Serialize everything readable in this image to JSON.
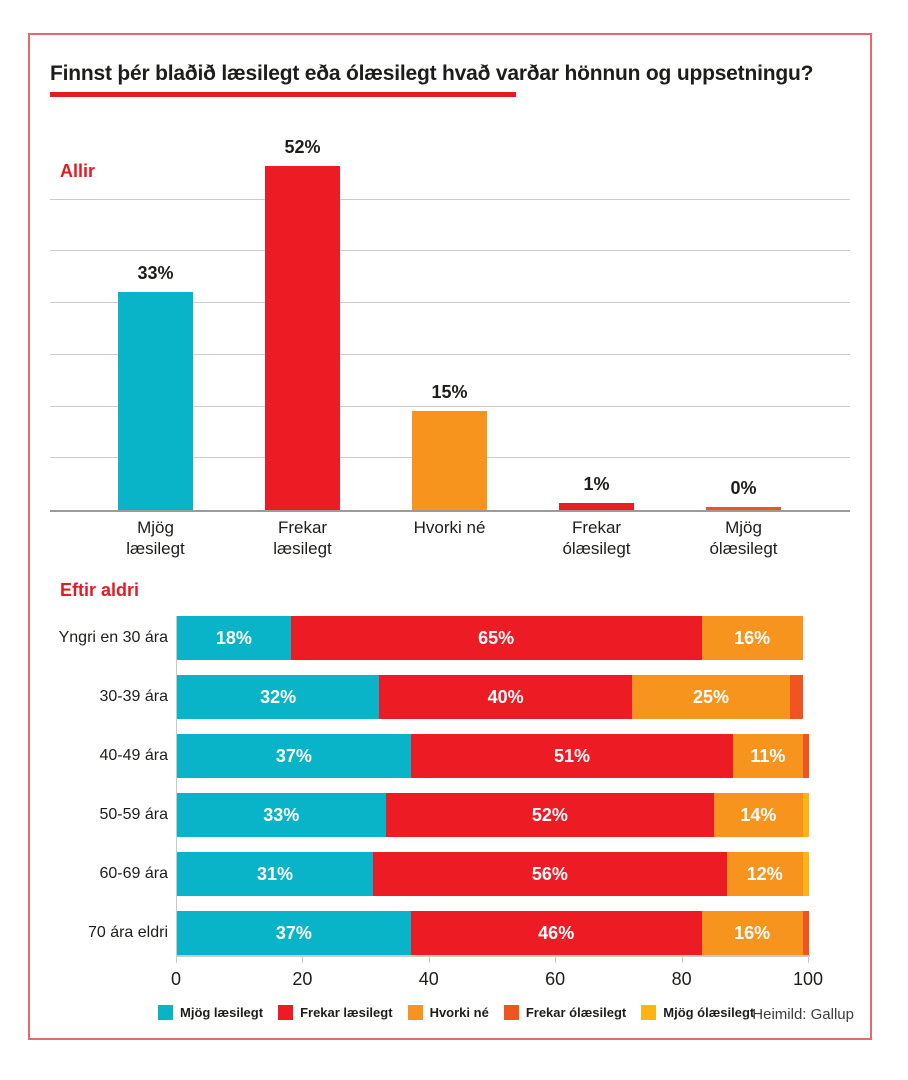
{
  "page": {
    "title": "Finnst þér blaðið læsilegt eða ólæsilegt hvað varðar hönnun og uppsetningu?",
    "source": "Heimild: Gallup"
  },
  "palette": {
    "mjog_laesilegt": "#09b4c8",
    "frekar_laesilegt": "#ec1b24",
    "hvorki_ne": "#f7941d",
    "frekar_olaesilegt": "#f0541f",
    "mjog_olaesilegt": "#fdb414",
    "accent_red": "#e31b23"
  },
  "chart_data": [
    {
      "type": "bar",
      "title": "Allir",
      "categories": [
        "Mjög læsilegt",
        "Frekar læsilegt",
        "Hvorki né",
        "Frekar ólæsilegt",
        "Mjög ólæsilegt"
      ],
      "category_lines": [
        [
          "Mjög",
          "læsilegt"
        ],
        [
          "Frekar",
          "læsilegt"
        ],
        [
          "Hvorki né"
        ],
        [
          "Frekar",
          "ólæsilegt"
        ],
        [
          "Mjög",
          "ólæsilegt"
        ]
      ],
      "values": [
        33,
        52,
        15,
        1,
        0
      ],
      "labels": [
        "33%",
        "52%",
        "15%",
        "1%",
        "0%"
      ],
      "bar_color_keys": [
        "mjog_laesilegt",
        "frekar_laesilegt",
        "hvorki_ne",
        "frekar_laesilegt",
        "frekar_olaesilegt"
      ],
      "ylim": [
        0,
        55
      ],
      "grid": true
    },
    {
      "type": "stacked-bar",
      "title": "Eftir aldri",
      "xlim": [
        0,
        100
      ],
      "x_ticks": [
        0,
        20,
        40,
        60,
        80,
        100
      ],
      "label_min_value": 10,
      "rows": [
        {
          "label": "Yngri en 30 ára",
          "segments": [
            {
              "key": "mjog_laesilegt",
              "value": 18
            },
            {
              "key": "frekar_laesilegt",
              "value": 65
            },
            {
              "key": "hvorki_ne",
              "value": 16
            }
          ]
        },
        {
          "label": "30-39 ára",
          "segments": [
            {
              "key": "mjog_laesilegt",
              "value": 32
            },
            {
              "key": "frekar_laesilegt",
              "value": 40
            },
            {
              "key": "hvorki_ne",
              "value": 25
            },
            {
              "key": "frekar_olaesilegt",
              "value": 2
            }
          ]
        },
        {
          "label": "40-49 ára",
          "segments": [
            {
              "key": "mjog_laesilegt",
              "value": 37
            },
            {
              "key": "frekar_laesilegt",
              "value": 51
            },
            {
              "key": "hvorki_ne",
              "value": 11
            },
            {
              "key": "frekar_olaesilegt",
              "value": 1
            }
          ]
        },
        {
          "label": "50-59 ára",
          "segments": [
            {
              "key": "mjog_laesilegt",
              "value": 33
            },
            {
              "key": "frekar_laesilegt",
              "value": 52
            },
            {
              "key": "hvorki_ne",
              "value": 14
            },
            {
              "key": "mjog_olaesilegt",
              "value": 1
            }
          ]
        },
        {
          "label": "60-69 ára",
          "segments": [
            {
              "key": "mjog_laesilegt",
              "value": 31
            },
            {
              "key": "frekar_laesilegt",
              "value": 56
            },
            {
              "key": "hvorki_ne",
              "value": 12
            },
            {
              "key": "mjog_olaesilegt",
              "value": 1
            }
          ]
        },
        {
          "label": "70 ára eldri",
          "segments": [
            {
              "key": "mjog_laesilegt",
              "value": 37
            },
            {
              "key": "frekar_laesilegt",
              "value": 46
            },
            {
              "key": "hvorki_ne",
              "value": 16
            },
            {
              "key": "frekar_olaesilegt",
              "value": 1
            }
          ]
        }
      ]
    }
  ],
  "legend": {
    "items": [
      {
        "key": "mjog_laesilegt",
        "label": "Mjög læsilegt"
      },
      {
        "key": "frekar_laesilegt",
        "label": "Frekar læsilegt"
      },
      {
        "key": "hvorki_ne",
        "label": "Hvorki né"
      },
      {
        "key": "frekar_olaesilegt",
        "label": "Frekar ólæsilegt"
      },
      {
        "key": "mjog_olaesilegt",
        "label": "Mjög ólæsilegt"
      }
    ]
  }
}
